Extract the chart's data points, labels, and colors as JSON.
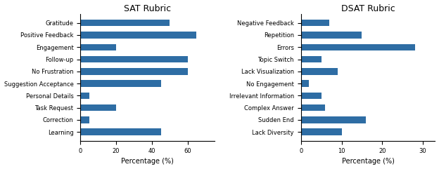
{
  "sat_labels": [
    "Gratitude",
    "Positive Feedback",
    "Engagement",
    "Follow-up",
    "No Frustration",
    "Suggestion Acceptance",
    "Personal Details",
    "Task Request",
    "Correction",
    "Learning"
  ],
  "sat_values": [
    50,
    65,
    20,
    60,
    60,
    45,
    5,
    20,
    5,
    45
  ],
  "dsat_labels": [
    "Negative Feedback",
    "Repetition",
    "Errors",
    "Topic Switch",
    "Lack Visualization",
    "No Engagement",
    "Irrelevant Information",
    "Complex Answer",
    "Sudden End",
    "Lack Diversity"
  ],
  "dsat_values": [
    7,
    15,
    28,
    5,
    9,
    2,
    5,
    6,
    16,
    10
  ],
  "sat_title": "SAT Rubric",
  "dsat_title": "DSAT Rubric",
  "xlabel": "Percentage (%)",
  "bar_color": "#2e6da4",
  "sat_xlim": [
    0,
    75
  ],
  "dsat_xlim": [
    0,
    33
  ],
  "sat_xticks": [
    0,
    20,
    40,
    60
  ],
  "dsat_xticks": [
    0,
    10,
    20,
    30
  ],
  "title_fontsize": 9,
  "label_fontsize": 6,
  "xlabel_fontsize": 7,
  "bar_height": 0.55
}
